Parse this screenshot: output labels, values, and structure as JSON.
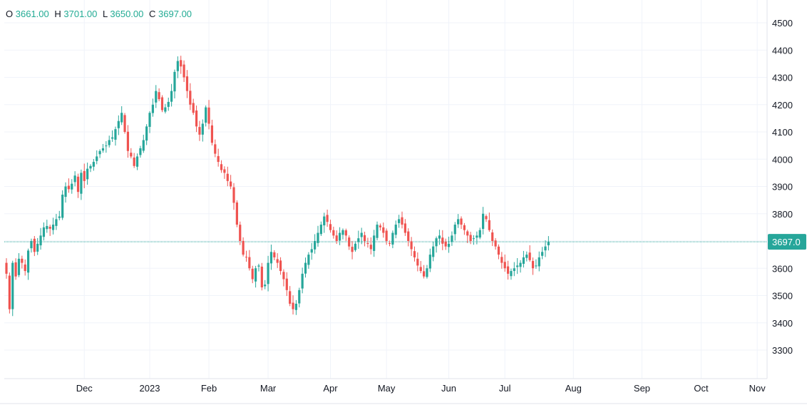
{
  "legend": {
    "open_label": "O",
    "open_value": "3661.00",
    "high_label": "H",
    "high_value": "3701.00",
    "low_label": "L",
    "low_value": "3650.00",
    "close_label": "C",
    "close_value": "3697.00"
  },
  "last_price_label": "3697.0",
  "colors": {
    "up": "#26a69a",
    "down": "#ef5350",
    "grid": "#f0f3fa",
    "axis": "#e0e3eb",
    "legend_value": "#22ab94"
  },
  "chart_data": {
    "type": "candlestick",
    "title": "",
    "ylim": [
      3200,
      4550
    ],
    "y_ticks": [
      3300,
      3400,
      3500,
      3600,
      3700,
      3800,
      3900,
      4000,
      4100,
      4200,
      4300,
      4400,
      4500
    ],
    "y_tick_labels": [
      "3300",
      "3400",
      "3500",
      "3600",
      "3700",
      "3800",
      "3900",
      "4000",
      "4100",
      "4200",
      "4300",
      "4400",
      "4500"
    ],
    "x_tick_labels": [
      "Dec",
      "2023",
      "Feb",
      "Mar",
      "Apr",
      "May",
      "Jun",
      "Jul",
      "Aug",
      "Sep",
      "Oct",
      "Nov"
    ],
    "x_tick_bar_index": [
      25,
      46,
      65,
      84,
      104,
      122,
      142,
      160,
      182,
      204,
      223,
      241
    ],
    "last_price": 3697.0,
    "grid": true,
    "closes": [
      3580,
      3450,
      3620,
      3570,
      3635,
      3620,
      3590,
      3665,
      3700,
      3660,
      3690,
      3720,
      3750,
      3755,
      3745,
      3760,
      3780,
      3790,
      3870,
      3900,
      3890,
      3910,
      3940,
      3880,
      3950,
      3920,
      3965,
      3975,
      3990,
      4010,
      4030,
      4040,
      4050,
      4070,
      4080,
      4110,
      4140,
      4170,
      4100,
      4030,
      4010,
      3975,
      4010,
      4040,
      4070,
      4120,
      4170,
      4200,
      4250,
      4220,
      4180,
      4190,
      4210,
      4250,
      4320,
      4360,
      4340,
      4300,
      4250,
      4200,
      4170,
      4120,
      4090,
      4130,
      4190,
      4130,
      4060,
      4020,
      3990,
      3960,
      3950,
      3920,
      3900,
      3840,
      3760,
      3700,
      3650,
      3640,
      3600,
      3560,
      3600,
      3610,
      3530,
      3540,
      3620,
      3660,
      3640,
      3620,
      3590,
      3560,
      3520,
      3470,
      3450,
      3470,
      3520,
      3580,
      3620,
      3650,
      3670,
      3700,
      3730,
      3760,
      3790,
      3770,
      3740,
      3720,
      3700,
      3730,
      3740,
      3720,
      3680,
      3660,
      3690,
      3710,
      3730,
      3700,
      3690,
      3670,
      3720,
      3760,
      3750,
      3730,
      3700,
      3690,
      3730,
      3760,
      3780,
      3760,
      3730,
      3700,
      3670,
      3640,
      3610,
      3590,
      3570,
      3600,
      3650,
      3680,
      3710,
      3720,
      3690,
      3680,
      3690,
      3720,
      3760,
      3780,
      3760,
      3740,
      3720,
      3700,
      3710,
      3720,
      3740,
      3800,
      3780,
      3740,
      3700,
      3680,
      3650,
      3620,
      3600,
      3580,
      3590,
      3600,
      3610,
      3620,
      3640,
      3650,
      3630,
      3600,
      3610,
      3640,
      3660,
      3680,
      3697
    ]
  }
}
